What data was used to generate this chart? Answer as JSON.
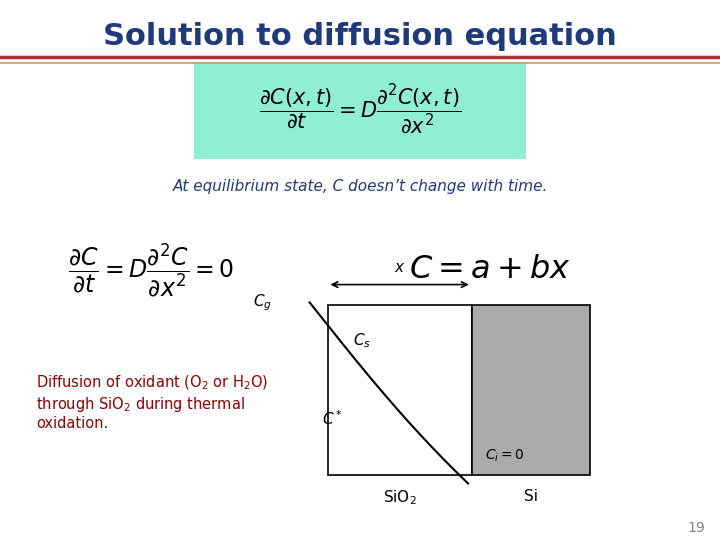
{
  "title": "Solution to diffusion equation",
  "title_color": "#1F3A7A",
  "title_fontsize": 22,
  "bg_color": "#FFFFFF",
  "line_color_top": "#B03030",
  "line_color_bottom": "#C8A050",
  "eq_box_color": "#90EED4",
  "eq1_latex": "$\\dfrac{\\partial C(x,t)}{\\partial t} = D\\dfrac{\\partial^2 C(x,t)}{\\partial x^2}$",
  "eq2_latex": "$\\dfrac{\\partial C}{\\partial t} = D\\dfrac{\\partial^2 C}{\\partial x^2} = 0$",
  "eq3_latex": "$C = a + bx$",
  "text_equilibrium": "At equilibrium state, C doesn’t change with time.",
  "text_equilibrium_color": "#1F3A7A",
  "text_diffusion_color": "#8B0000",
  "page_number": "19",
  "sio2_label": "SiO$_2$",
  "si_label": "Si",
  "cg_label": "$C_g$",
  "cs_label": "$C_s$",
  "cstar_label": "$C^*$",
  "ci_label": "$C_i=0$",
  "x_label": "$x$"
}
